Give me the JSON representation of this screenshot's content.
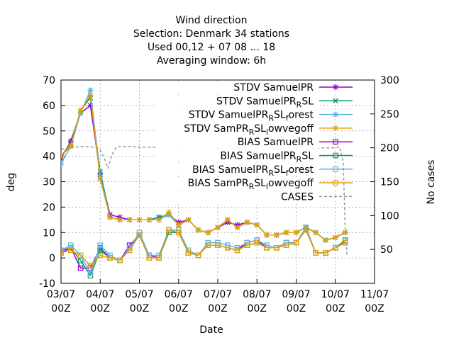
{
  "chart_data": {
    "type": "line",
    "title_lines": [
      "Wind direction",
      "Selection: Denmark      34 stations",
      "Used  00,12  + 07 08 ... 18",
      "Averaging window:  6h"
    ],
    "xlabel": "Date",
    "ylabel": "deg",
    "y2label": "No cases",
    "xlim": [
      0,
      8
    ],
    "ylim": [
      -10,
      70
    ],
    "y2lim": [
      0,
      300
    ],
    "x_ticks": [
      {
        "v": 0,
        "l1": "03/07",
        "l2": "00Z"
      },
      {
        "v": 1,
        "l1": "04/07",
        "l2": "00Z"
      },
      {
        "v": 2,
        "l1": "05/07",
        "l2": "00Z"
      },
      {
        "v": 3,
        "l1": "06/07",
        "l2": "00Z"
      },
      {
        "v": 4,
        "l1": "07/07",
        "l2": "00Z"
      },
      {
        "v": 5,
        "l1": "08/07",
        "l2": "00Z"
      },
      {
        "v": 6,
        "l1": "09/07",
        "l2": "00Z"
      },
      {
        "v": 7,
        "l1": "10/07",
        "l2": "00Z"
      },
      {
        "v": 8,
        "l1": "11/07",
        "l2": "00Z"
      }
    ],
    "y_ticks": [
      "-10",
      "0",
      "10",
      "20",
      "30",
      "40",
      "50",
      "60",
      "70"
    ],
    "y2_ticks": [
      "50",
      "100",
      "150",
      "200",
      "250",
      "300"
    ],
    "grid": true,
    "legend_position": "top-right",
    "x": [
      0,
      0.25,
      0.5,
      0.75,
      1,
      1.25,
      1.5,
      1.75,
      2,
      2.25,
      2.5,
      2.75,
      3,
      3.25,
      3.5,
      3.75,
      4,
      4.25,
      4.5,
      4.75,
      5,
      5.25,
      5.5,
      5.75,
      6,
      6.25,
      6.5,
      6.75,
      7,
      7.25
    ],
    "series": [
      {
        "name": "STDV SamuelPR",
        "style": "line",
        "color": "#9400d3",
        "marker": "star",
        "values": [
          39,
          46,
          57,
          60,
          33,
          17,
          16,
          15,
          15,
          15,
          16,
          17,
          14,
          15,
          11,
          10,
          12,
          14,
          13,
          14,
          13,
          9,
          9,
          10,
          10,
          12,
          10,
          7,
          8,
          10
        ]
      },
      {
        "name": "STDV SamuelPR_RSL",
        "style": "line",
        "color": "#009e73",
        "marker": "x",
        "values": [
          40,
          45,
          58,
          63,
          34,
          16,
          15,
          15,
          15,
          15,
          16,
          17,
          13,
          15,
          11,
          10,
          12,
          15,
          12,
          14,
          13,
          9,
          9,
          10,
          10,
          12,
          10,
          7,
          8,
          10
        ]
      },
      {
        "name": "STDV SamuelPR_RSL_forest",
        "style": "line",
        "color": "#56b4e9",
        "marker": "star",
        "values": [
          37,
          44,
          57,
          66,
          32,
          16,
          15,
          15,
          15,
          15,
          15,
          17,
          13,
          15,
          11,
          10,
          12,
          15,
          12,
          14,
          13,
          9,
          9,
          10,
          10,
          12,
          10,
          7,
          8,
          10
        ]
      },
      {
        "name": "STDV SamPR_RSL_lowvegoff",
        "style": "line",
        "color": "#e69f00",
        "marker": "star",
        "values": [
          40,
          44,
          58,
          64,
          31,
          16,
          15,
          15,
          15,
          15,
          15,
          18,
          13,
          15,
          11,
          10,
          12,
          15,
          12,
          14,
          13,
          9,
          9,
          10,
          10,
          12,
          10,
          7,
          8,
          10
        ]
      },
      {
        "name": "BIAS SamuelPR",
        "style": "line",
        "color": "#9400d3",
        "marker": "square",
        "values": [
          2,
          4,
          -4,
          -4,
          4,
          0,
          -1,
          5,
          9,
          1,
          0,
          11,
          10,
          2,
          1,
          5,
          5,
          4,
          3,
          6,
          7,
          4,
          4,
          6,
          6,
          11,
          2,
          2,
          4,
          6
        ]
      },
      {
        "name": "BIAS SamuelPR_RSL",
        "style": "line",
        "color": "#009e73",
        "marker": "square",
        "values": [
          3,
          4,
          -1,
          -7,
          3,
          0,
          -1,
          4,
          9,
          0,
          0,
          10,
          10,
          2,
          1,
          5,
          5,
          4,
          3,
          5,
          6,
          4,
          4,
          5,
          6,
          11,
          2,
          2,
          4,
          7
        ]
      },
      {
        "name": "BIAS SamuelPR_RSL_forest",
        "style": "line",
        "color": "#56b4e9",
        "marker": "square",
        "values": [
          3,
          5,
          1,
          -6,
          5,
          1,
          -1,
          4,
          10,
          1,
          1,
          11,
          11,
          3,
          1,
          6,
          6,
          5,
          4,
          6,
          7,
          5,
          4,
          6,
          6,
          12,
          2,
          2,
          4,
          6
        ]
      },
      {
        "name": "BIAS SamPR_RSL_lowvegoff",
        "style": "line",
        "color": "#e69f00",
        "marker": "square",
        "values": [
          2,
          3,
          1,
          -3,
          1,
          0,
          -1,
          3,
          9,
          0,
          0,
          11,
          10,
          2,
          1,
          5,
          5,
          4,
          3,
          5,
          6,
          4,
          4,
          5,
          6,
          11,
          2,
          2,
          4,
          6
        ]
      },
      {
        "name": "CASES",
        "style": "dashed",
        "color": "#999999",
        "axis": "y2",
        "x": [
          0,
          0.25,
          0.5,
          0.75,
          0.9,
          1,
          1.1,
          1.2,
          1.3,
          1.4,
          1.5,
          1.6,
          1.75,
          2,
          2.5,
          3,
          3.5,
          4,
          4.5,
          5,
          5.5,
          6,
          6.5,
          7,
          7.1,
          7.2,
          7.25,
          7.3
        ],
        "values": [
          198,
          200,
          202,
          202,
          200,
          197,
          185,
          170,
          190,
          200,
          202,
          202,
          202,
          201,
          201,
          202,
          202,
          201,
          200,
          201,
          200,
          201,
          200,
          200,
          202,
          180,
          80,
          40
        ]
      }
    ]
  }
}
